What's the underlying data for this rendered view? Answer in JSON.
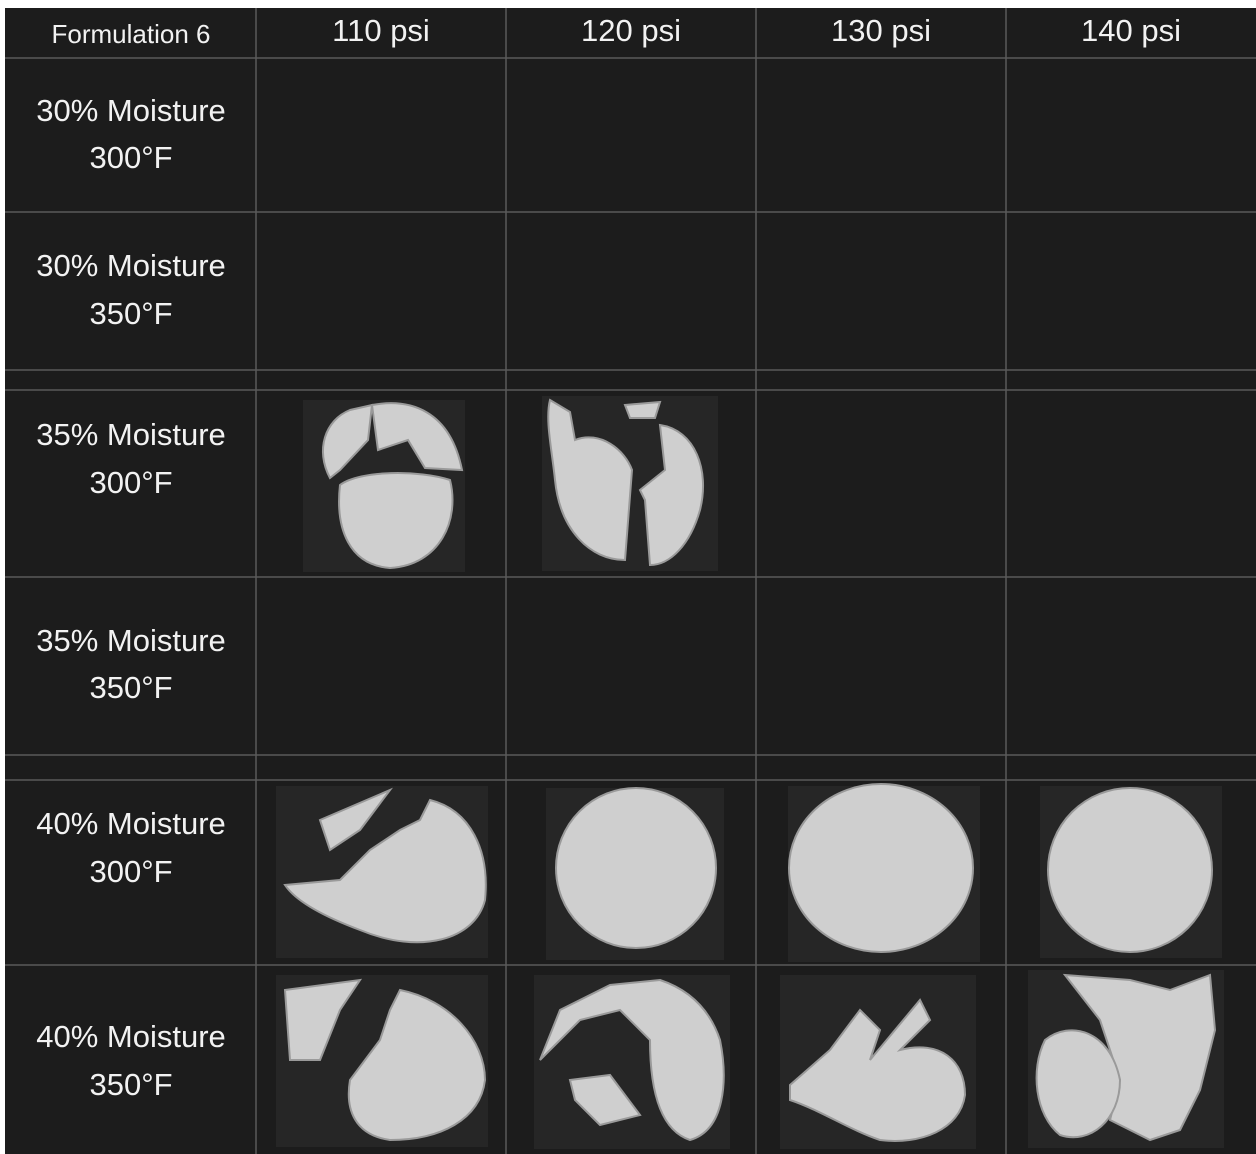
{
  "table": {
    "corner": "Formulation 6",
    "columns": [
      "110 psi",
      "120 psi",
      "130 psi",
      "140 psi"
    ],
    "rows": [
      [
        "30% Moisture",
        "300°F"
      ],
      [
        "30% Moisture",
        "350°F"
      ],
      [
        "35% Moisture",
        "300°F"
      ],
      [
        "35% Moisture",
        "350°F"
      ],
      [
        "40% Moisture",
        "300°F"
      ],
      [
        "40% Moisture",
        "350°F"
      ]
    ]
  }
}
